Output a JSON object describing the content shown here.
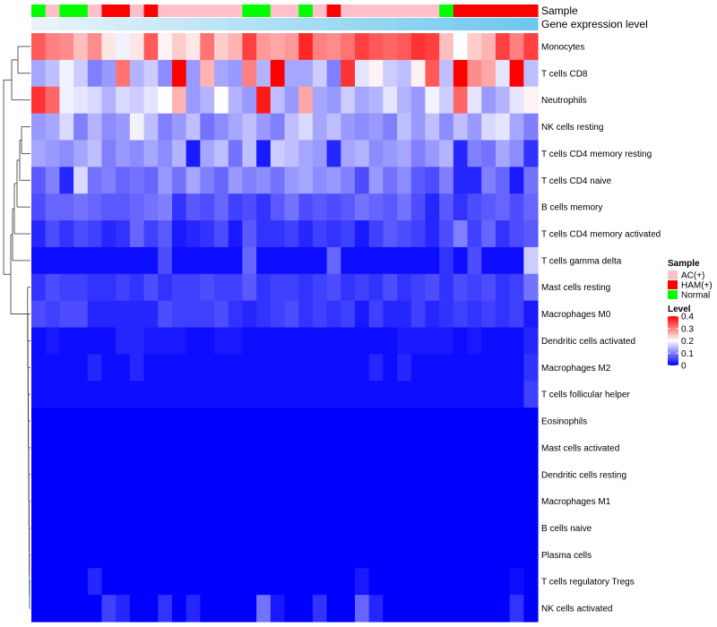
{
  "chart_data": {
    "type": "heatmap",
    "annotation_labels": {
      "sample": "Sample",
      "gene_expression": "Gene expression level"
    },
    "sample_groups": [
      "Normal",
      "AC(+)",
      "Normal",
      "Normal",
      "AC(+)",
      "HAM(+)",
      "HAM(+)",
      "AC(+)",
      "HAM(+)",
      "AC(+)",
      "AC(+)",
      "AC(+)",
      "AC(+)",
      "AC(+)",
      "AC(+)",
      "Normal",
      "Normal",
      "AC(+)",
      "AC(+)",
      "Normal",
      "AC(+)",
      "HAM(+)",
      "AC(+)",
      "AC(+)",
      "AC(+)",
      "AC(+)",
      "AC(+)",
      "AC(+)",
      "AC(+)",
      "Normal",
      "HAM(+)",
      "HAM(+)",
      "HAM(+)",
      "HAM(+)",
      "HAM(+)",
      "HAM(+)"
    ],
    "rows": [
      {
        "label": "Monocytes",
        "values": [
          0.33,
          0.3,
          0.29,
          0.25,
          0.29,
          0.22,
          0.19,
          0.22,
          0.33,
          0.21,
          0.24,
          0.22,
          0.31,
          0.24,
          0.26,
          0.35,
          0.28,
          0.27,
          0.28,
          0.37,
          0.3,
          0.29,
          0.31,
          0.35,
          0.33,
          0.32,
          0.33,
          0.36,
          0.35,
          0.25,
          0.2,
          0.24,
          0.26,
          0.35,
          0.3,
          0.35
        ]
      },
      {
        "label": "T cells CD8",
        "values": [
          0.13,
          0.15,
          0.19,
          0.16,
          0.1,
          0.12,
          0.31,
          0.14,
          0.16,
          0.11,
          0.4,
          0.12,
          0.26,
          0.13,
          0.12,
          0.3,
          0.14,
          0.4,
          0.13,
          0.13,
          0.16,
          0.1,
          0.36,
          0.18,
          0.21,
          0.16,
          0.15,
          0.21,
          0.33,
          0.15,
          0.4,
          0.29,
          0.27,
          0.18,
          0.4,
          0.15
        ]
      },
      {
        "label": "Neutrophils",
        "values": [
          0.36,
          0.32,
          0.19,
          0.18,
          0.17,
          0.14,
          0.17,
          0.16,
          0.18,
          0.2,
          0.26,
          0.12,
          0.14,
          0.2,
          0.14,
          0.12,
          0.38,
          0.15,
          0.12,
          0.27,
          0.13,
          0.12,
          0.16,
          0.13,
          0.14,
          0.18,
          0.14,
          0.12,
          0.19,
          0.16,
          0.32,
          0.18,
          0.12,
          0.14,
          0.18,
          0.21
        ]
      },
      {
        "label": "NK cells resting",
        "values": [
          0.12,
          0.13,
          0.17,
          0.1,
          0.14,
          0.11,
          0.12,
          0.19,
          0.15,
          0.1,
          0.12,
          0.15,
          0.09,
          0.11,
          0.13,
          0.15,
          0.12,
          0.1,
          0.15,
          0.17,
          0.13,
          0.15,
          0.12,
          0.11,
          0.12,
          0.1,
          0.15,
          0.12,
          0.15,
          0.11,
          0.15,
          0.12,
          0.17,
          0.18,
          0.13,
          0.1
        ]
      },
      {
        "label": "T cells CD4 memory resting",
        "values": [
          0.13,
          0.12,
          0.11,
          0.13,
          0.15,
          0.1,
          0.12,
          0.11,
          0.13,
          0.11,
          0.14,
          0.02,
          0.13,
          0.15,
          0.09,
          0.15,
          0.02,
          0.16,
          0.15,
          0.13,
          0.12,
          0.03,
          0.13,
          0.14,
          0.11,
          0.12,
          0.13,
          0.1,
          0.12,
          0.14,
          0.03,
          0.1,
          0.09,
          0.13,
          0.11,
          0.04
        ]
      },
      {
        "label": "T cells CD4 naive",
        "values": [
          0.07,
          0.1,
          0.03,
          0.17,
          0.09,
          0.1,
          0.08,
          0.09,
          0.08,
          0.12,
          0.09,
          0.13,
          0.1,
          0.08,
          0.12,
          0.1,
          0.11,
          0.09,
          0.12,
          0.13,
          0.11,
          0.12,
          0.1,
          0.06,
          0.12,
          0.09,
          0.11,
          0.07,
          0.06,
          0.1,
          0.03,
          0.03,
          0.1,
          0.08,
          0.02,
          0.09
        ]
      },
      {
        "label": "B cells memory",
        "values": [
          0.06,
          0.08,
          0.08,
          0.09,
          0.08,
          0.07,
          0.07,
          0.08,
          0.09,
          0.1,
          0.04,
          0.07,
          0.06,
          0.08,
          0.05,
          0.06,
          0.04,
          0.07,
          0.09,
          0.06,
          0.07,
          0.06,
          0.07,
          0.09,
          0.08,
          0.07,
          0.09,
          0.06,
          0.03,
          0.07,
          0.04,
          0.06,
          0.07,
          0.08,
          0.06,
          0.08
        ]
      },
      {
        "label": "T cells CD4 memory activated",
        "values": [
          0.03,
          0.06,
          0.04,
          0.06,
          0.05,
          0.03,
          0.04,
          0.08,
          0.05,
          0.07,
          0.02,
          0.03,
          0.04,
          0.06,
          0.02,
          0.07,
          0.04,
          0.04,
          0.05,
          0.03,
          0.05,
          0.04,
          0.05,
          0.02,
          0.05,
          0.07,
          0.06,
          0.05,
          0.03,
          0.06,
          0.1,
          0.05,
          0.08,
          0.04,
          0.06,
          0.07
        ]
      },
      {
        "label": "T cells gamma delta",
        "values": [
          0.01,
          0.01,
          0.01,
          0.01,
          0.01,
          0.01,
          0.01,
          0.01,
          0.01,
          0.06,
          0.01,
          0.01,
          0.01,
          0.01,
          0.01,
          0.08,
          0.01,
          0.01,
          0.01,
          0.01,
          0.01,
          0.08,
          0.01,
          0.01,
          0.01,
          0.01,
          0.01,
          0.01,
          0.01,
          0.04,
          0.01,
          0.06,
          0.01,
          0.01,
          0.01,
          0.16
        ]
      },
      {
        "label": "Mast cells resting",
        "values": [
          0.04,
          0.06,
          0.05,
          0.05,
          0.04,
          0.04,
          0.05,
          0.04,
          0.06,
          0.04,
          0.05,
          0.05,
          0.06,
          0.05,
          0.05,
          0.07,
          0.04,
          0.05,
          0.05,
          0.04,
          0.05,
          0.06,
          0.04,
          0.05,
          0.04,
          0.06,
          0.04,
          0.05,
          0.06,
          0.04,
          0.06,
          0.05,
          0.06,
          0.04,
          0.05,
          0.09
        ]
      },
      {
        "label": "Macrophages M0",
        "values": [
          0.06,
          0.05,
          0.06,
          0.06,
          0.03,
          0.03,
          0.03,
          0.03,
          0.03,
          0.06,
          0.05,
          0.05,
          0.05,
          0.06,
          0.04,
          0.03,
          0.04,
          0.05,
          0.06,
          0.04,
          0.05,
          0.04,
          0.05,
          0.02,
          0.05,
          0.03,
          0.03,
          0.05,
          0.03,
          0.04,
          0.05,
          0.04,
          0.05,
          0.04,
          0.05,
          0.02
        ]
      },
      {
        "label": "Dendritic cells activated",
        "values": [
          0.01,
          0.02,
          0.01,
          0.01,
          0.01,
          0.01,
          0.03,
          0.03,
          0.02,
          0.02,
          0.02,
          0.01,
          0.01,
          0.02,
          0.02,
          0.01,
          0.01,
          0.01,
          0.01,
          0.01,
          0.01,
          0.01,
          0.01,
          0.01,
          0.01,
          0.01,
          0.02,
          0.02,
          0.02,
          0.02,
          0.01,
          0.02,
          0.01,
          0.01,
          0.01,
          0.03
        ]
      },
      {
        "label": "Macrophages M2",
        "values": [
          0.01,
          0.01,
          0.01,
          0.01,
          0.03,
          0.01,
          0.01,
          0.03,
          0.01,
          0.01,
          0.01,
          0.01,
          0.01,
          0.01,
          0.01,
          0.01,
          0.01,
          0.01,
          0.01,
          0.01,
          0.01,
          0.01,
          0.01,
          0.01,
          0.03,
          0.01,
          0.03,
          0.01,
          0.01,
          0.01,
          0.01,
          0.01,
          0.01,
          0.01,
          0.01,
          0.04
        ]
      },
      {
        "label": "T cells follicular helper",
        "values": [
          0.01,
          0.01,
          0.01,
          0.01,
          0.01,
          0.01,
          0.01,
          0.01,
          0.01,
          0.01,
          0.01,
          0.01,
          0.01,
          0.01,
          0.01,
          0.01,
          0.01,
          0.01,
          0.01,
          0.01,
          0.01,
          0.01,
          0.01,
          0.01,
          0.01,
          0.01,
          0.01,
          0.01,
          0.01,
          0.01,
          0.01,
          0.01,
          0.01,
          0.01,
          0.01,
          0.05
        ]
      },
      {
        "label": "Eosinophils",
        "values": [
          0.0,
          0.0,
          0.0,
          0.0,
          0.0,
          0.0,
          0.0,
          0.0,
          0.0,
          0.0,
          0.0,
          0.0,
          0.0,
          0.0,
          0.0,
          0.0,
          0.0,
          0.0,
          0.0,
          0.0,
          0.0,
          0.0,
          0.0,
          0.0,
          0.0,
          0.0,
          0.0,
          0.0,
          0.0,
          0.0,
          0.0,
          0.0,
          0.0,
          0.0,
          0.0,
          0.0
        ]
      },
      {
        "label": "Mast cells activated",
        "values": [
          0.0,
          0.0,
          0.0,
          0.0,
          0.0,
          0.0,
          0.0,
          0.0,
          0.0,
          0.0,
          0.0,
          0.0,
          0.0,
          0.0,
          0.0,
          0.0,
          0.0,
          0.0,
          0.0,
          0.0,
          0.0,
          0.0,
          0.0,
          0.0,
          0.0,
          0.0,
          0.0,
          0.0,
          0.0,
          0.0,
          0.0,
          0.0,
          0.0,
          0.0,
          0.0,
          0.0
        ]
      },
      {
        "label": "Dendritic cells resting",
        "values": [
          0.0,
          0.0,
          0.0,
          0.0,
          0.0,
          0.0,
          0.0,
          0.0,
          0.0,
          0.0,
          0.0,
          0.0,
          0.0,
          0.0,
          0.0,
          0.0,
          0.0,
          0.0,
          0.0,
          0.0,
          0.0,
          0.0,
          0.0,
          0.0,
          0.0,
          0.0,
          0.0,
          0.0,
          0.0,
          0.0,
          0.0,
          0.0,
          0.0,
          0.0,
          0.0,
          0.0
        ]
      },
      {
        "label": "Macrophages M1",
        "values": [
          0.0,
          0.0,
          0.0,
          0.0,
          0.0,
          0.0,
          0.0,
          0.0,
          0.0,
          0.0,
          0.0,
          0.0,
          0.0,
          0.0,
          0.0,
          0.0,
          0.0,
          0.0,
          0.0,
          0.0,
          0.0,
          0.0,
          0.0,
          0.0,
          0.0,
          0.0,
          0.0,
          0.0,
          0.0,
          0.0,
          0.0,
          0.0,
          0.0,
          0.0,
          0.0,
          0.0
        ]
      },
      {
        "label": "B cells naive",
        "values": [
          0.0,
          0.0,
          0.0,
          0.0,
          0.0,
          0.0,
          0.0,
          0.0,
          0.0,
          0.0,
          0.0,
          0.0,
          0.0,
          0.0,
          0.0,
          0.0,
          0.0,
          0.0,
          0.0,
          0.0,
          0.0,
          0.0,
          0.0,
          0.0,
          0.0,
          0.0,
          0.0,
          0.0,
          0.0,
          0.0,
          0.0,
          0.0,
          0.0,
          0.0,
          0.0,
          0.0
        ]
      },
      {
        "label": "Plasma cells",
        "values": [
          0.0,
          0.0,
          0.0,
          0.0,
          0.0,
          0.0,
          0.0,
          0.0,
          0.0,
          0.0,
          0.0,
          0.0,
          0.0,
          0.0,
          0.0,
          0.0,
          0.0,
          0.0,
          0.0,
          0.0,
          0.0,
          0.0,
          0.0,
          0.0,
          0.0,
          0.0,
          0.0,
          0.0,
          0.0,
          0.0,
          0.0,
          0.0,
          0.0,
          0.0,
          0.0,
          0.0
        ]
      },
      {
        "label": "T cells regulatory  Tregs",
        "values": [
          0.0,
          0.0,
          0.0,
          0.0,
          0.03,
          0.0,
          0.0,
          0.0,
          0.0,
          0.0,
          0.0,
          0.0,
          0.0,
          0.0,
          0.0,
          0.0,
          0.0,
          0.0,
          0.0,
          0.0,
          0.0,
          0.0,
          0.0,
          0.02,
          0.0,
          0.0,
          0.0,
          0.0,
          0.0,
          0.0,
          0.0,
          0.0,
          0.0,
          0.0,
          0.01,
          0.0
        ]
      },
      {
        "label": "NK cells activated",
        "values": [
          0.0,
          0.0,
          0.0,
          0.0,
          0.0,
          0.05,
          0.03,
          0.0,
          0.0,
          0.04,
          0.0,
          0.03,
          0.0,
          0.0,
          0.0,
          0.0,
          0.09,
          0.02,
          0.0,
          0.0,
          0.04,
          0.0,
          0.0,
          0.08,
          0.03,
          0.0,
          0.0,
          0.0,
          0.0,
          0.0,
          0.0,
          0.0,
          0.0,
          0.0,
          0.04,
          0.0
        ]
      }
    ],
    "legend_sample": {
      "title": "Sample",
      "items": [
        {
          "label": "AC(+)",
          "color": "#FFC0CB"
        },
        {
          "label": "HAM(+)",
          "color": "#FF0000"
        },
        {
          "label": "Normal",
          "color": "#00FF00"
        }
      ]
    },
    "legend_level": {
      "title": "Level",
      "ticks": [
        "0.4",
        "0.3",
        "0.2",
        "0.1",
        "0"
      ],
      "min": 0,
      "max": 0.4,
      "colors": {
        "low": "#0000FF",
        "mid": "#FFFFFF",
        "high": "#FF0000"
      }
    },
    "gene_expression_colors": {
      "from": "#E8F4FA",
      "to": "#6EC8EE"
    }
  }
}
